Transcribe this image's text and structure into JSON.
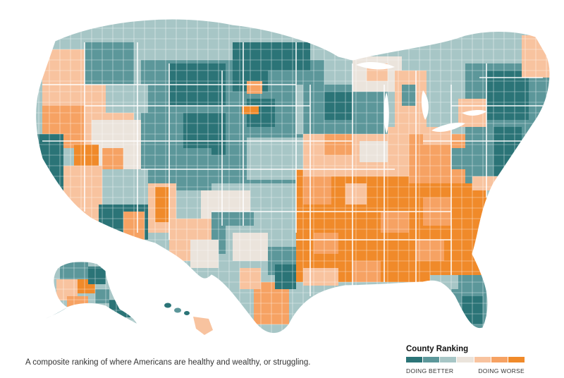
{
  "caption": "A composite ranking of where Americans are healthy and wealthy, or struggling.",
  "legend": {
    "title": "County Ranking",
    "low_label": "DOING BETTER",
    "high_label": "DOING WORSE",
    "colors": [
      "#2b7477",
      "#5c979a",
      "#a7c6c6",
      "#ebe4dc",
      "#f8c39f",
      "#f6a263",
      "#f08a2a"
    ]
  },
  "map": {
    "subject": "United States counties",
    "regions": [
      "Contiguous United States",
      "Alaska",
      "Hawaii"
    ]
  }
}
